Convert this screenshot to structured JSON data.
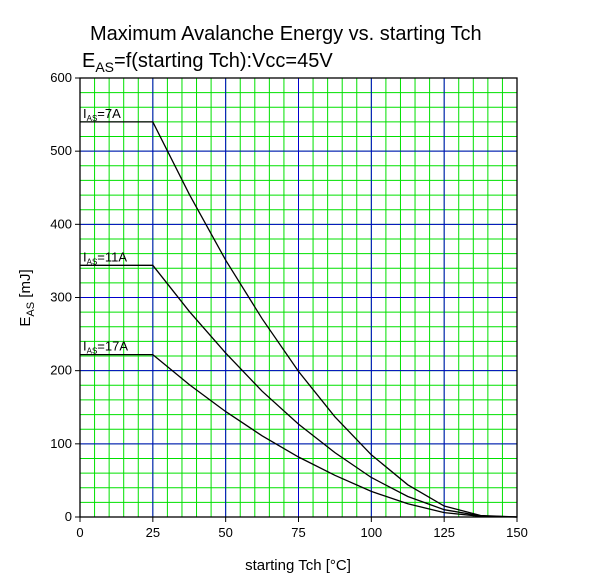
{
  "colors": {
    "plot_background": "#ffffff",
    "minor_grid": "#00e000",
    "major_grid": "#0000cc",
    "curve": "#000000",
    "frame": "#000000"
  },
  "chart_data": {
    "type": "line",
    "title": {
      "line1": "Maximum Avalanche Energy vs. starting Tch",
      "line2_main": "E",
      "line2_sub": "AS",
      "line2_rest": "=f(starting Tch):Vcc=45V"
    },
    "xlabel": "starting Tch [°C]",
    "ylabel": {
      "main": "E",
      "sub": "AS",
      "rest": " [mJ]"
    },
    "xlim": [
      0,
      150
    ],
    "ylim": [
      0,
      600
    ],
    "x_ticks": [
      0,
      25,
      50,
      75,
      100,
      125,
      150
    ],
    "y_ticks": [
      0,
      100,
      200,
      300,
      400,
      500,
      600
    ],
    "x_minor_step": 5,
    "y_minor_step": 20,
    "grid": true,
    "series": [
      {
        "name": "IAS=7A",
        "label_main": "I",
        "label_sub": "AS",
        "label_rest": "=7A",
        "label_at": [
          0,
          540
        ],
        "x": [
          0,
          25,
          37.5,
          50,
          62.5,
          75,
          87.5,
          100,
          112.5,
          125,
          137.5,
          150
        ],
        "y": [
          540,
          540,
          441,
          351,
          271,
          199,
          137,
          85,
          44,
          15,
          2,
          0
        ]
      },
      {
        "name": "IAS=11A",
        "label_main": "I",
        "label_sub": "AS",
        "label_rest": "=11A",
        "label_at": [
          0,
          344
        ],
        "x": [
          0,
          25,
          37.5,
          50,
          62.5,
          75,
          87.5,
          100,
          112.5,
          125,
          137.5,
          150
        ],
        "y": [
          344,
          344,
          281,
          224,
          172,
          127,
          88,
          54,
          28,
          10,
          1.5,
          0
        ]
      },
      {
        "name": "IAS=17A",
        "label_main": "I",
        "label_sub": "AS",
        "label_rest": "=17A",
        "label_at": [
          0,
          222
        ],
        "x": [
          0,
          25,
          37.5,
          50,
          62.5,
          75,
          87.5,
          100,
          112.5,
          125,
          137.5,
          150
        ],
        "y": [
          222,
          222,
          181,
          144,
          111,
          82,
          57,
          35,
          18,
          6,
          1,
          0
        ]
      }
    ]
  }
}
